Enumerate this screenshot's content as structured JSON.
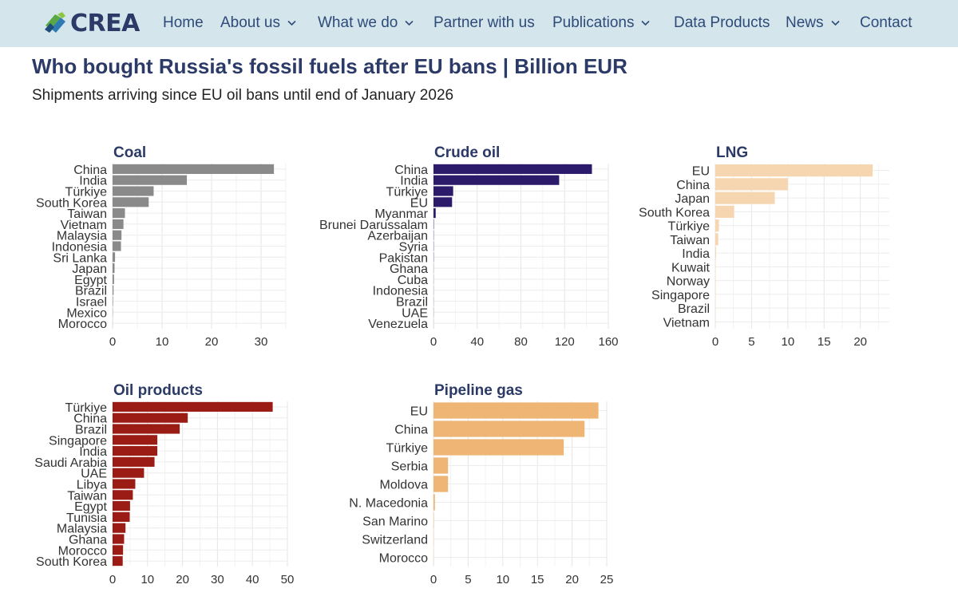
{
  "nav": {
    "logo_text": "CREA",
    "items": [
      {
        "label": "Home",
        "has_dropdown": false
      },
      {
        "label": "About us",
        "has_dropdown": true
      },
      {
        "label": "What we do",
        "has_dropdown": true
      },
      {
        "label": "Partner with us",
        "has_dropdown": false
      },
      {
        "label": "Publications",
        "has_dropdown": true
      },
      {
        "label": "Data Products",
        "has_dropdown": false
      },
      {
        "label": "News",
        "has_dropdown": true
      },
      {
        "label": "Contact",
        "has_dropdown": false
      }
    ]
  },
  "page": {
    "title": "Who bought Russia's fossil fuels after EU bans | Billion EUR",
    "subtitle": "Shipments arriving since EU oil bans until end of January 2026"
  },
  "colors": {
    "navbar_bg": "#d4e6ec",
    "title": "#2b3a67",
    "coal": "#8a8a8a",
    "crude_oil": "#2c1a6b",
    "lng": "#f6d6b0",
    "oil_products": "#9b1c15",
    "pipeline_gas": "#efb574",
    "grid": "#ebebeb"
  },
  "chart_data": [
    {
      "type": "bar",
      "orientation": "horizontal",
      "title": "Coal",
      "color": "#8a8a8a",
      "xlim": [
        0,
        35
      ],
      "xticks": [
        0,
        10,
        20,
        30
      ],
      "categories": [
        "China",
        "India",
        "Türkiye",
        "South Korea",
        "Taiwan",
        "Vietnam",
        "Malaysia",
        "Indonesia",
        "Sri Lanka",
        "Japan",
        "Egypt",
        "Brazil",
        "Israel",
        "Mexico",
        "Morocco"
      ],
      "values": [
        32.6,
        15.0,
        8.3,
        7.3,
        2.5,
        2.2,
        1.8,
        1.7,
        0.5,
        0.4,
        0.3,
        0.2,
        0.1,
        0.05,
        0.02
      ]
    },
    {
      "type": "bar",
      "orientation": "horizontal",
      "title": "Crude oil",
      "color": "#2c1a6b",
      "xlim": [
        0,
        160
      ],
      "xticks": [
        0,
        40,
        80,
        120,
        160
      ],
      "categories": [
        "China",
        "India",
        "Türkiye",
        "EU",
        "Myanmar",
        "Brunei Darussalam",
        "Azerbaijan",
        "Syria",
        "Pakistan",
        "Ghana",
        "Cuba",
        "Indonesia",
        "Brazil",
        "UAE",
        "Venezuela"
      ],
      "values": [
        145,
        115,
        18,
        17,
        2,
        0.3,
        0.2,
        0.2,
        0.2,
        0.1,
        0.1,
        0.1,
        0.1,
        0.1,
        0.05
      ]
    },
    {
      "type": "bar",
      "orientation": "horizontal",
      "title": "LNG",
      "color": "#f6d6b0",
      "xlim": [
        0,
        24
      ],
      "xticks": [
        0,
        5,
        10,
        15,
        20
      ],
      "categories": [
        "EU",
        "China",
        "Japan",
        "South Korea",
        "Türkiye",
        "Taiwan",
        "India",
        "Kuwait",
        "Norway",
        "Singapore",
        "Brazil",
        "Vietnam"
      ],
      "values": [
        21.7,
        10.0,
        8.2,
        2.6,
        0.5,
        0.4,
        0.1,
        0.05,
        0.05,
        0.05,
        0.03,
        0.02
      ]
    },
    {
      "type": "bar",
      "orientation": "horizontal",
      "title": "Oil products",
      "color": "#9b1c15",
      "xlim": [
        0,
        50
      ],
      "xticks": [
        0,
        10,
        20,
        30,
        40,
        50
      ],
      "categories": [
        "Türkiye",
        "China",
        "Brazil",
        "Singapore",
        "India",
        "Saudi Arabia",
        "UAE",
        "Libya",
        "Taiwan",
        "Egypt",
        "Tunisia",
        "Malaysia",
        "Ghana",
        "Morocco",
        "South Korea"
      ],
      "values": [
        45.8,
        21.5,
        19.2,
        12.8,
        12.8,
        12.0,
        9.0,
        6.5,
        5.8,
        5.0,
        4.9,
        3.7,
        3.3,
        3.0,
        2.9
      ]
    },
    {
      "type": "bar",
      "orientation": "horizontal",
      "title": "Pipeline gas",
      "color": "#efb574",
      "xlim": [
        0,
        25
      ],
      "xticks": [
        0,
        5,
        10,
        15,
        20,
        25
      ],
      "categories": [
        "EU",
        "China",
        "Türkiye",
        "Serbia",
        "Moldova",
        "N. Macedonia",
        "San Marino",
        "Switzerland",
        "Morocco"
      ],
      "values": [
        23.8,
        21.8,
        18.8,
        2.1,
        2.1,
        0.2,
        0.05,
        0.03,
        0.02
      ]
    }
  ]
}
